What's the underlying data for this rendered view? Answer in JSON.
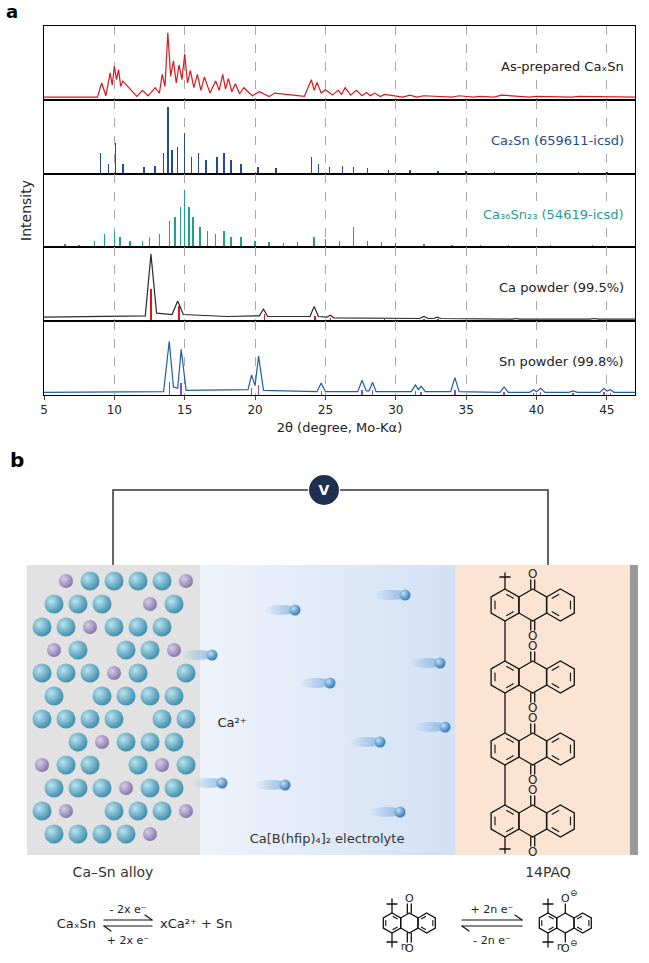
{
  "panel_a_label": "a",
  "chart_data": [
    {
      "type": "line",
      "xlim": [
        5,
        47
      ],
      "xticks": [
        5,
        10,
        15,
        20,
        25,
        30,
        35,
        40,
        45
      ],
      "ylim": [
        0,
        110
      ],
      "grid": true,
      "tick_labels": false,
      "series": [
        {
          "name": "As-prepared CaₓSn",
          "color": "#d7191c",
          "type": "line",
          "x": [
            5,
            8.8,
            9.1,
            9.4,
            9.7,
            9.85,
            10.0,
            10.15,
            10.3,
            10.45,
            10.6,
            11.6,
            12.0,
            12.4,
            12.9,
            13.2,
            13.4,
            13.6,
            13.8,
            14.0,
            14.2,
            14.4,
            14.6,
            14.8,
            15.0,
            15.2,
            15.4,
            15.65,
            15.9,
            16.15,
            16.4,
            16.8,
            17.2,
            17.45,
            17.7,
            17.9,
            18.1,
            18.35,
            18.6,
            18.9,
            19.2,
            19.8,
            20.3,
            21.0,
            21.4,
            23.5,
            24.0,
            24.2,
            24.4,
            24.7,
            25.0,
            25.5,
            25.9,
            26.15,
            26.4,
            26.8,
            27.2,
            27.6,
            27.9,
            28.2,
            28.5,
            28.9,
            29.2,
            30.5,
            31.0,
            31.5,
            32.0,
            34.0,
            34.5,
            35.5,
            36.0,
            37.0,
            37.5,
            39.5,
            40.0,
            42.5,
            43.0,
            47
          ],
          "values": [
            4,
            4,
            25,
            6,
            40,
            22,
            50,
            30,
            45,
            20,
            28,
            5,
            14,
            6,
            18,
            10,
            38,
            20,
            100,
            35,
            58,
            25,
            52,
            30,
            68,
            25,
            44,
            18,
            38,
            14,
            34,
            10,
            28,
            14,
            38,
            16,
            32,
            12,
            24,
            9,
            18,
            6,
            12,
            5,
            10,
            5,
            30,
            14,
            26,
            10,
            15,
            7,
            14,
            8,
            18,
            7,
            14,
            6,
            11,
            6,
            10,
            5,
            8,
            4,
            7,
            4,
            6,
            4,
            6,
            4,
            5,
            4,
            7,
            4,
            5,
            4,
            5,
            4
          ]
        }
      ]
    },
    {
      "type": "bar",
      "xlim": [
        5,
        47
      ],
      "xticks": [
        5,
        10,
        15,
        20,
        25,
        30,
        35,
        40,
        45
      ],
      "ylim": [
        0,
        110
      ],
      "grid": true,
      "tick_labels": false,
      "series": [
        {
          "name": "Ca₂Sn (659611-icsd)",
          "color": "#1f4e8c",
          "type": "bar",
          "x": [
            9.0,
            9.6,
            10.1,
            10.6,
            12.1,
            12.9,
            13.5,
            13.8,
            14.1,
            14.5,
            15.0,
            15.5,
            16.0,
            16.5,
            17.3,
            17.8,
            18.3,
            19.0,
            20.2,
            21.5,
            24.0,
            24.5,
            25.3,
            26.2,
            27.0,
            28.0,
            29.5,
            31.0,
            33.0,
            35.0,
            37.0,
            40.0,
            43.0,
            45.0
          ],
          "values": [
            30,
            15,
            45,
            15,
            10,
            12,
            30,
            100,
            35,
            40,
            60,
            25,
            30,
            20,
            25,
            30,
            20,
            15,
            10,
            8,
            25,
            15,
            10,
            12,
            10,
            8,
            6,
            5,
            4,
            4,
            3,
            3,
            3,
            3
          ]
        }
      ]
    },
    {
      "type": "bar",
      "xlim": [
        5,
        47
      ],
      "xticks": [
        5,
        10,
        15,
        20,
        25,
        30,
        35,
        40,
        45
      ],
      "ylim": [
        0,
        110
      ],
      "grid": true,
      "tick_labels": false,
      "ylabel": "Intensity",
      "series": [
        {
          "name": "Ca₃₆Sn₂₃ (54619-icsd)",
          "color": "#1f9e94",
          "type": "bar",
          "x": [
            6.5,
            7.5,
            8.6,
            9.3,
            10.0,
            10.4,
            11.1,
            12.0,
            12.5,
            13.2,
            13.9,
            14.3,
            14.7,
            15.0,
            15.3,
            15.6,
            16.1,
            16.6,
            17.2,
            17.8,
            18.3,
            19.0,
            20.0,
            21.0,
            22.0,
            23.0,
            24.2,
            25.0,
            26.0,
            27.0,
            28.0,
            29.0,
            30.0,
            32.0,
            34.0,
            36.0,
            38.0,
            41.0,
            44.0
          ],
          "values": [
            5,
            4,
            10,
            20,
            25,
            15,
            10,
            10,
            15,
            20,
            40,
            45,
            60,
            85,
            60,
            45,
            30,
            25,
            20,
            25,
            15,
            15,
            10,
            8,
            6,
            8,
            15,
            12,
            10,
            30,
            10,
            8,
            6,
            5,
            4,
            4,
            3,
            3,
            3
          ]
        }
      ]
    },
    {
      "type": "line",
      "xlim": [
        5,
        47
      ],
      "xticks": [
        5,
        10,
        15,
        20,
        25,
        30,
        35,
        40,
        45
      ],
      "ylim": [
        0,
        110
      ],
      "grid": true,
      "tick_labels": false,
      "series": [
        {
          "name": "Ca powder (99.5%)",
          "color": "#2b2b2b",
          "type": "line",
          "x": [
            5,
            10,
            12.2,
            12.6,
            13.0,
            14.1,
            14.5,
            14.9,
            18,
            20.3,
            20.6,
            20.9,
            23.9,
            24.2,
            24.5,
            25.1,
            25.35,
            25.6,
            28.8,
            29.1,
            29.4,
            31.7,
            32.0,
            32.3,
            32.7,
            32.95,
            33.2,
            36.0,
            36.25,
            36.5,
            38.3,
            38.55,
            38.8,
            43.8,
            44.1,
            44.4,
            47
          ],
          "values": [
            6,
            7,
            8,
            100,
            12,
            10,
            30,
            10,
            7,
            8,
            18,
            7,
            7,
            22,
            7,
            6,
            9,
            5,
            4,
            5,
            4,
            4,
            7,
            4,
            4,
            6,
            4,
            3,
            4,
            3,
            3,
            4,
            3,
            3,
            4,
            3,
            3
          ]
        },
        {
          "color": "#d7191c",
          "type": "bar",
          "x": [
            12.6,
            14.6,
            20.65,
            24.25,
            25.35,
            29.2,
            32.0,
            33.0,
            36.3,
            38.6,
            44.1
          ],
          "values": [
            48,
            22,
            10,
            8,
            5,
            3,
            4,
            3,
            2,
            2,
            2
          ]
        }
      ]
    },
    {
      "type": "line",
      "xlim": [
        5,
        47
      ],
      "xticks": [
        5,
        10,
        15,
        20,
        25,
        30,
        35,
        40,
        45
      ],
      "ylim": [
        0,
        110
      ],
      "grid": true,
      "tick_labels": "x",
      "xlabel": "2θ (degree, Mo-Kα)",
      "series": [
        {
          "name": "Sn powder (99.8%)",
          "color": "#1f5fa8",
          "type": "line",
          "x": [
            5,
            13.5,
            13.9,
            14.2,
            14.5,
            14.75,
            15.1,
            19.5,
            19.75,
            20.0,
            20.25,
            20.6,
            24.4,
            24.7,
            25.0,
            27.3,
            27.6,
            27.9,
            28.1,
            28.35,
            28.6,
            31.1,
            31.4,
            31.6,
            31.8,
            32.1,
            33.9,
            34.2,
            34.5,
            37.4,
            37.7,
            38.0,
            39.5,
            39.8,
            40.0,
            40.3,
            40.6,
            42.3,
            42.6,
            42.9,
            44.5,
            44.8,
            45.0,
            45.25,
            45.5,
            47
          ],
          "values": [
            4,
            5,
            80,
            12,
            10,
            68,
            7,
            8,
            30,
            14,
            58,
            7,
            5,
            18,
            5,
            5,
            22,
            6,
            6,
            19,
            5,
            5,
            15,
            8,
            13,
            5,
            5,
            26,
            5,
            4,
            12,
            4,
            4,
            8,
            5,
            10,
            4,
            4,
            6,
            4,
            4,
            10,
            6,
            8,
            4,
            4
          ]
        },
        {
          "color": "#8a4fbf",
          "type": "bar",
          "x": [
            13.9,
            14.75,
            19.75,
            20.25,
            24.7,
            27.6,
            28.35,
            31.4,
            31.8,
            34.2,
            37.7,
            39.8,
            40.3,
            42.6,
            44.8,
            45.25
          ],
          "values": [
            20,
            18,
            10,
            15,
            6,
            8,
            7,
            6,
            5,
            8,
            5,
            3,
            4,
            3,
            4,
            3
          ]
        }
      ]
    }
  ],
  "panel_b": {
    "label": "b",
    "meter": "V",
    "ion": "Ca²⁺",
    "electrolyte": "Ca[B(hfip)₄]₂ electrolyte",
    "anode": "Ca–Sn alloy",
    "cathode": "14PAQ",
    "oxygen": "O",
    "anode_reaction": {
      "reactant": "CaₓSn",
      "forward": "- 2x e⁻",
      "backward": "+ 2x e⁻",
      "products": "xCa²⁺ + Sn"
    },
    "cathode_reaction": {
      "forward": "+ 2n e⁻",
      "backward": "- 2n e⁻",
      "charge": "⊖",
      "repeat": "n"
    }
  }
}
